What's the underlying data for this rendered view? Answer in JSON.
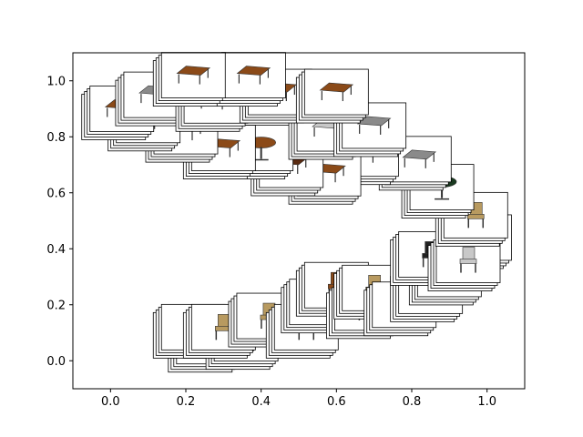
{
  "chart_data": {
    "type": "scatter",
    "title": "",
    "xlabel": "",
    "ylabel": "",
    "xlim": [
      -0.1,
      1.1
    ],
    "ylim": [
      -0.1,
      1.1
    ],
    "grid": false,
    "x_ticks": [
      "0.0",
      "0.2",
      "0.4",
      "0.6",
      "0.8",
      "1.0"
    ],
    "y_ticks": [
      "0.0",
      "0.2",
      "0.4",
      "0.6",
      "0.8",
      "1.0"
    ],
    "marker": "thumbnail image",
    "colors": {
      "wood_brown": "#8b4a18",
      "dark_wood": "#5a2a10",
      "gray": "#8a8a8a",
      "silver": "#c8c8c8",
      "blue": "#3050d0",
      "green_black": "#1a3a20",
      "tan": "#b89a60"
    },
    "series": [
      {
        "points": [
          {
            "x": 0.26,
            "y": 0.07,
            "item": "dark-wood-chair"
          },
          {
            "x": 0.22,
            "y": 0.12,
            "item": "chair"
          },
          {
            "x": 0.36,
            "y": 0.08,
            "item": "chair"
          },
          {
            "x": 0.3,
            "y": 0.12,
            "item": "tan-chair"
          },
          {
            "x": 0.42,
            "y": 0.16,
            "item": "chair"
          },
          {
            "x": 0.52,
            "y": 0.12,
            "item": "black-chair"
          },
          {
            "x": 0.56,
            "y": 0.21,
            "item": "wood-chair"
          },
          {
            "x": 0.6,
            "y": 0.27,
            "item": "wood-chair"
          },
          {
            "x": 0.68,
            "y": 0.19,
            "item": "gray-armchair"
          },
          {
            "x": 0.7,
            "y": 0.26,
            "item": "chair"
          },
          {
            "x": 0.78,
            "y": 0.2,
            "item": "chair"
          },
          {
            "x": 0.85,
            "y": 0.25,
            "item": "blue-chair"
          },
          {
            "x": 0.9,
            "y": 0.31,
            "item": "chair"
          },
          {
            "x": 0.85,
            "y": 0.38,
            "item": "black-chair"
          },
          {
            "x": 0.98,
            "y": 0.44,
            "item": "gray-chair"
          },
          {
            "x": 0.95,
            "y": 0.36,
            "item": "silver-chair"
          },
          {
            "x": 0.97,
            "y": 0.52,
            "item": "chair"
          },
          {
            "x": 0.88,
            "y": 0.62,
            "item": "round-table"
          },
          {
            "x": 0.82,
            "y": 0.72,
            "item": "gray-table"
          },
          {
            "x": 0.68,
            "y": 0.74,
            "item": "table"
          },
          {
            "x": 0.58,
            "y": 0.67,
            "item": "table"
          },
          {
            "x": 0.48,
            "y": 0.7,
            "item": "dark-table"
          },
          {
            "x": 0.4,
            "y": 0.76,
            "item": "round-wood-table"
          },
          {
            "x": 0.3,
            "y": 0.76,
            "item": "table"
          },
          {
            "x": 0.2,
            "y": 0.82,
            "item": "wood-table"
          },
          {
            "x": 0.1,
            "y": 0.86,
            "item": "wood-table"
          },
          {
            "x": 0.03,
            "y": 0.9,
            "item": "table"
          },
          {
            "x": 0.58,
            "y": 0.83,
            "item": "silver-table"
          },
          {
            "x": 0.7,
            "y": 0.84,
            "item": "gray-table"
          },
          {
            "x": 0.12,
            "y": 0.95,
            "item": "gray-table"
          },
          {
            "x": 0.28,
            "y": 0.93,
            "item": "wood-table"
          },
          {
            "x": 0.45,
            "y": 0.96,
            "item": "wood-table"
          },
          {
            "x": 0.6,
            "y": 0.96,
            "item": "wood-table"
          },
          {
            "x": 0.38,
            "y": 1.02,
            "item": "table"
          },
          {
            "x": 0.22,
            "y": 1.02,
            "item": "table"
          }
        ]
      }
    ]
  }
}
